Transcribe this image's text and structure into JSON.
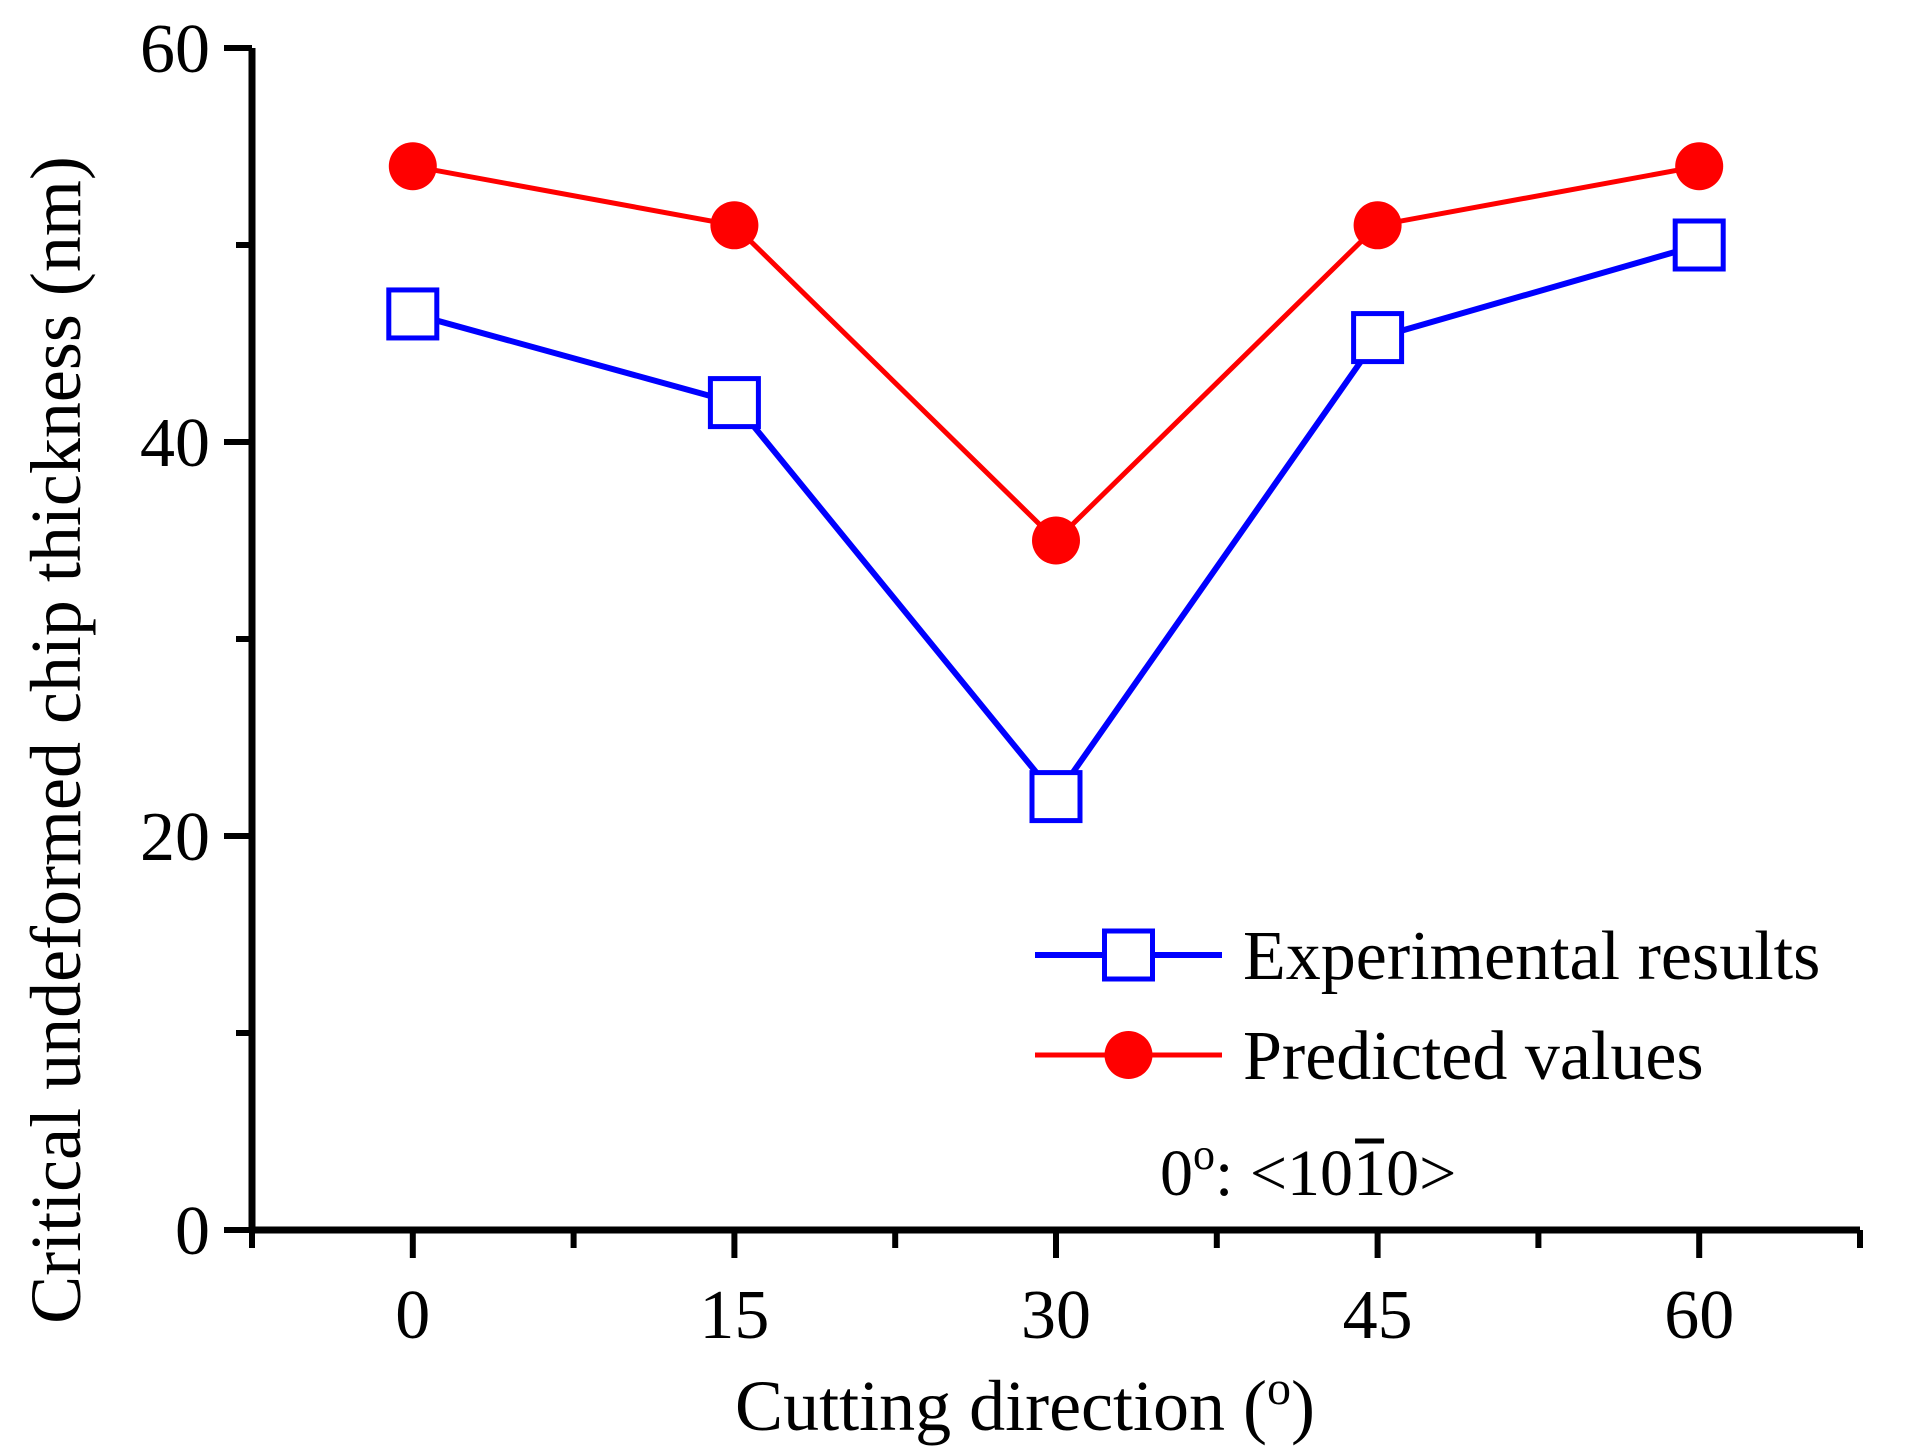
{
  "chart_data": {
    "type": "line",
    "title": "",
    "xlabel": "Cutting direction (",
    "xlabel_unit_sup": "o",
    "xlabel_close": ")",
    "ylabel": "Critical undeformed chip thickness (nm)",
    "x": [
      0,
      15,
      30,
      45,
      60
    ],
    "xticks": [
      "0",
      "15",
      "30",
      "45",
      "60"
    ],
    "yticks": [
      "0",
      "20",
      "40",
      "60"
    ],
    "xlim": [
      -7.5,
      67.5
    ],
    "ylim": [
      0,
      60
    ],
    "series": [
      {
        "name": "Experimental results",
        "color": "#0000ff",
        "marker": "open-square",
        "values": [
          46.5,
          42,
          22,
          45.3,
          50
        ]
      },
      {
        "name": "Predicted values",
        "color": "#ff0000",
        "marker": "filled-circle",
        "values": [
          54,
          51,
          35,
          51,
          54
        ]
      }
    ],
    "legend_position": "bottom-right",
    "annotation": {
      "prefix": "0",
      "degree_sup": "o",
      "mid": ": <10",
      "overbar_digit": "1",
      "suffix": "0>"
    }
  }
}
